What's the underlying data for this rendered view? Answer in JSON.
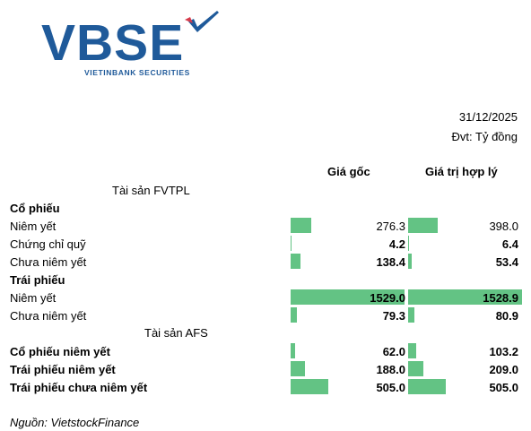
{
  "logo": {
    "brand": "VBSE",
    "subtitle": "VIETINBANK SECURITIES"
  },
  "date": "31/12/2025",
  "unit": "Đvt: Tỷ đồng",
  "columns": {
    "cost": "Giá gốc",
    "fair": "Giá trị hợp lý"
  },
  "sections": {
    "fvtpl": "Tài sản FVTPL",
    "afs": "Tài sản AFS"
  },
  "max_value": 1529.0,
  "rows": [
    {
      "label": "Cổ phiếu",
      "header": true
    },
    {
      "label": "Niêm yết",
      "cost": "276.3",
      "fair": "398.0",
      "cost_v": 276.3,
      "fair_v": 398.0,
      "bold": false
    },
    {
      "label": "Chứng chỉ quỹ",
      "cost": "4.2",
      "fair": "6.4",
      "cost_v": 4.2,
      "fair_v": 6.4,
      "bold_values": true
    },
    {
      "label": "Chưa niêm yết",
      "cost": "138.4",
      "fair": "53.4",
      "cost_v": 138.4,
      "fair_v": 53.4,
      "bold_values": true
    },
    {
      "label": "Trái phiếu",
      "header": true
    },
    {
      "label": "Niêm yết",
      "cost": "1529.0",
      "fair": "1528.9",
      "cost_v": 1529.0,
      "fair_v": 1528.9,
      "bold_values": true
    },
    {
      "label": "Chưa niêm yết",
      "cost": "79.3",
      "fair": "80.9",
      "cost_v": 79.3,
      "fair_v": 80.9,
      "bold_values": true
    },
    {
      "label": "Cổ phiếu niêm yết",
      "cost": "62.0",
      "fair": "103.2",
      "cost_v": 62.0,
      "fair_v": 103.2,
      "bold": true
    },
    {
      "label": "Trái phiếu niêm yết",
      "cost": "188.0",
      "fair": "209.0",
      "cost_v": 188.0,
      "fair_v": 209.0,
      "bold": true
    },
    {
      "label": "Trái phiếu chưa niêm yết",
      "cost": "505.0",
      "fair": "505.0",
      "cost_v": 505.0,
      "fair_v": 505.0,
      "bold": true
    }
  ],
  "source": "Nguồn: VietstockFinance"
}
